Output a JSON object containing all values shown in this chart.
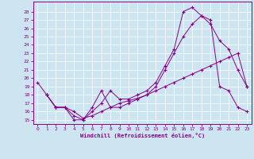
{
  "xlabel": "Windchill (Refroidissement éolien,°C)",
  "bg_color": "#cce5f0",
  "line_color": "#880088",
  "grid_color": "#ffffff",
  "xlim": [
    -0.5,
    23.5
  ],
  "ylim": [
    14.5,
    29.2
  ],
  "xticks": [
    0,
    1,
    2,
    3,
    4,
    5,
    6,
    7,
    8,
    9,
    10,
    11,
    12,
    13,
    14,
    15,
    16,
    17,
    18,
    19,
    20,
    21,
    22,
    23
  ],
  "yticks": [
    15,
    16,
    17,
    18,
    19,
    20,
    21,
    22,
    23,
    24,
    25,
    26,
    27,
    28
  ],
  "curve1_x": [
    0,
    1,
    2,
    3,
    4,
    5,
    6,
    7,
    8,
    9,
    10,
    11,
    12,
    13,
    14,
    15,
    16,
    17,
    18,
    19,
    20,
    21,
    22,
    23
  ],
  "curve1_y": [
    19.5,
    18.0,
    16.5,
    16.5,
    15.0,
    15.0,
    16.5,
    18.5,
    16.5,
    16.5,
    17.0,
    17.5,
    18.0,
    19.0,
    21.0,
    23.0,
    25.0,
    26.5,
    27.5,
    26.5,
    24.5,
    23.5,
    21.0,
    19.0
  ],
  "curve2_x": [
    1,
    2,
    3,
    4,
    5,
    6,
    7,
    8,
    9,
    10,
    11,
    12,
    13,
    14,
    15,
    16,
    17,
    18,
    19,
    20,
    21,
    22,
    23
  ],
  "curve2_y": [
    18.0,
    16.5,
    16.5,
    16.0,
    15.2,
    15.5,
    16.0,
    16.5,
    17.0,
    17.3,
    17.6,
    18.0,
    18.5,
    19.0,
    19.5,
    20.0,
    20.5,
    21.0,
    21.5,
    22.0,
    22.5,
    23.0,
    19.0
  ],
  "curve3_x": [
    1,
    2,
    3,
    4,
    5,
    6,
    7,
    8,
    9,
    10,
    11,
    12,
    13,
    14,
    15,
    16,
    17,
    18,
    19,
    20,
    21,
    22,
    23
  ],
  "curve3_y": [
    18.0,
    16.5,
    16.5,
    15.5,
    15.0,
    16.0,
    17.0,
    18.5,
    17.5,
    17.5,
    18.0,
    18.5,
    19.5,
    21.5,
    23.5,
    28.0,
    28.5,
    27.5,
    27.0,
    19.0,
    18.5,
    16.5,
    16.0
  ]
}
